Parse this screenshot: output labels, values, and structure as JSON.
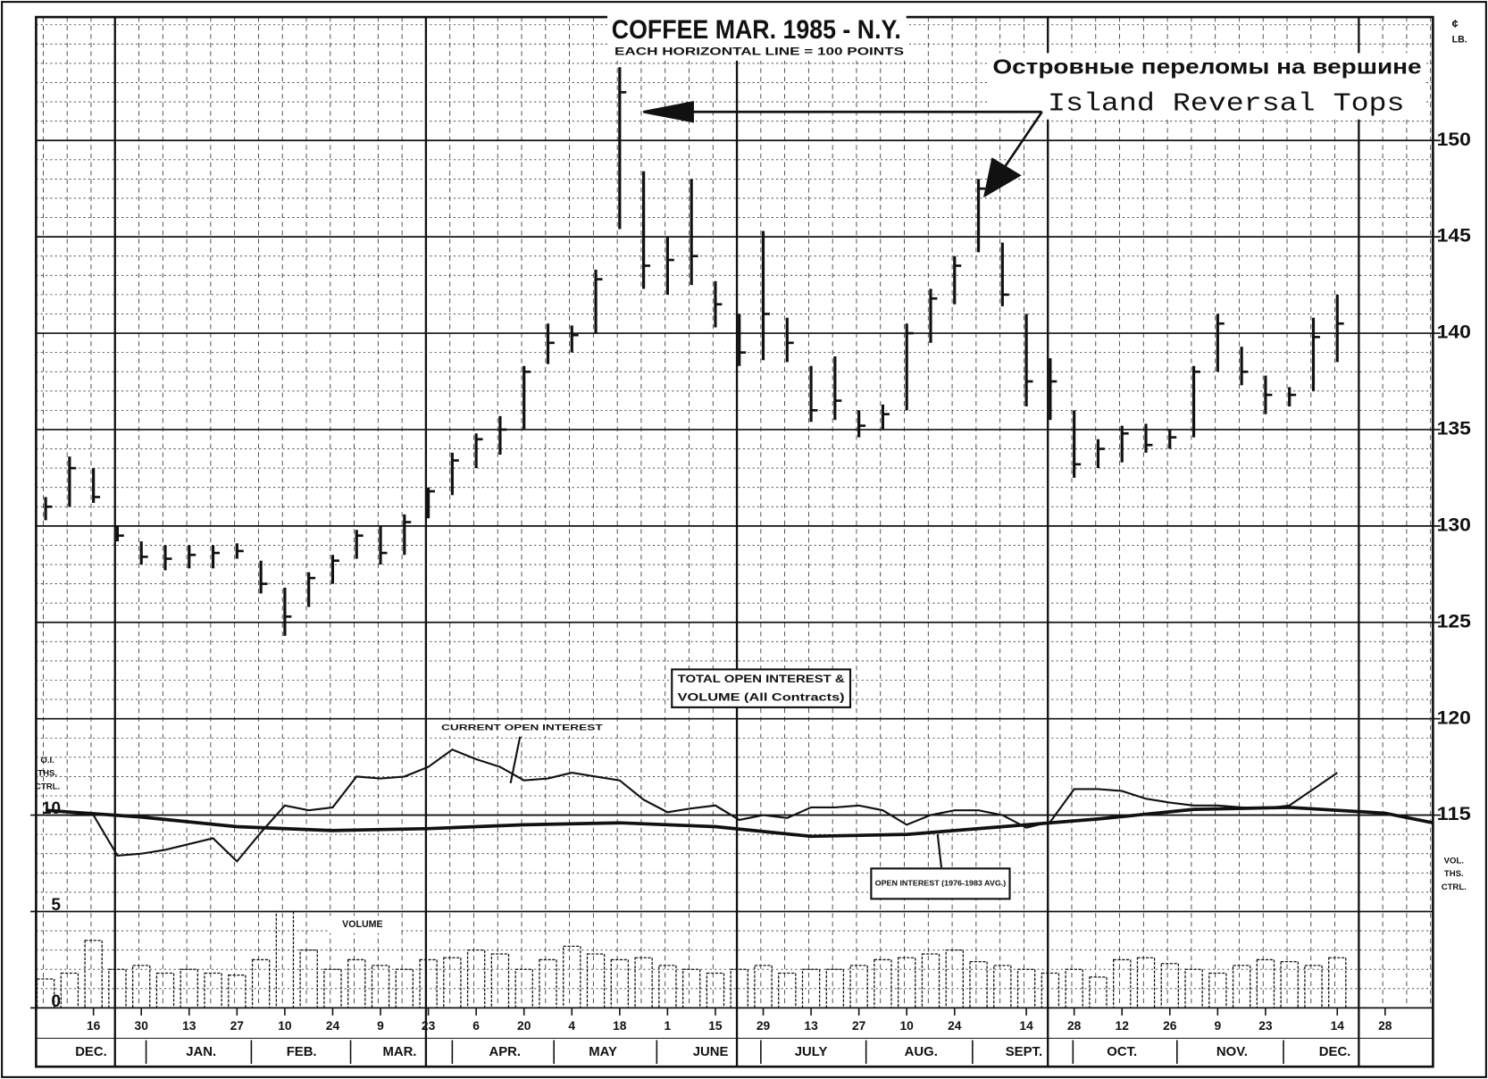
{
  "chart_data": {
    "type": "hlc",
    "title": "COFFEE MAR. 1985 - N.Y.",
    "subtitle": "EACH HORIZONTAL LINE = 100 POINTS",
    "annotations": [
      "Островные переломы на вершине",
      "Island Reversal Tops",
      "TOTAL OPEN INTEREST &",
      "VOLUME (All Contracts)"
    ],
    "y_unit": [
      "¢",
      "LB."
    ],
    "y2_label": [
      "O.I.",
      "THS.",
      "CTRL."
    ],
    "volume_axis_label": [
      "VOL.",
      "THS.",
      "CTRL."
    ],
    "color": "#111111",
    "xlim": [
      -2.4,
      56
    ],
    "ylim": [
      105,
      156.4
    ],
    "yticks": [
      115,
      120,
      125,
      130,
      135,
      140,
      145,
      150
    ],
    "y2lim": [
      0,
      51.4
    ],
    "y2ticks": [
      0,
      5,
      10
    ],
    "minor_ystep": 1,
    "minor_xstep": 1,
    "xgrid_major": [
      0.9,
      13.9,
      26.9,
      39.9,
      52.9
    ],
    "xticks": [
      {
        "value": 0,
        "label": "16"
      },
      {
        "value": 2,
        "label": "30"
      },
      {
        "value": 4,
        "label": "13"
      },
      {
        "value": 6,
        "label": "27"
      },
      {
        "value": 8,
        "label": "10"
      },
      {
        "value": 10,
        "label": "24"
      },
      {
        "value": 12,
        "label": "9"
      },
      {
        "value": 14,
        "label": "23"
      },
      {
        "value": 16,
        "label": "6"
      },
      {
        "value": 18,
        "label": "20"
      },
      {
        "value": 20,
        "label": "4"
      },
      {
        "value": 22,
        "label": "18"
      },
      {
        "value": 24,
        "label": "1"
      },
      {
        "value": 26,
        "label": "15"
      },
      {
        "value": 28,
        "label": "29"
      },
      {
        "value": 30,
        "label": "13"
      },
      {
        "value": 32,
        "label": "27"
      },
      {
        "value": 34,
        "label": "10"
      },
      {
        "value": 36,
        "label": "24"
      },
      {
        "value": 39,
        "label": "14"
      },
      {
        "value": 41,
        "label": "28"
      },
      {
        "value": 43,
        "label": "12"
      },
      {
        "value": 45,
        "label": "26"
      },
      {
        "value": 47,
        "label": "9"
      },
      {
        "value": 49,
        "label": "23"
      },
      {
        "value": 52,
        "label": "14"
      },
      {
        "value": 54,
        "label": "28"
      }
    ],
    "month_ticks": [
      {
        "value": -0.1,
        "label": "DEC."
      },
      {
        "value": 4.5,
        "label": "JAN."
      },
      {
        "value": 8.7,
        "label": "FEB."
      },
      {
        "value": 12.8,
        "label": "MAR."
      },
      {
        "value": 17.2,
        "label": "APR."
      },
      {
        "value": 21.3,
        "label": "MAY"
      },
      {
        "value": 25.8,
        "label": "JUNE"
      },
      {
        "value": 30,
        "label": "JULY"
      },
      {
        "value": 34.6,
        "label": "AUG."
      },
      {
        "value": 38.9,
        "label": "SEPT."
      },
      {
        "value": 43,
        "label": "OCT."
      },
      {
        "value": 47.6,
        "label": "NOV."
      },
      {
        "value": 51.9,
        "label": "DEC."
      }
    ],
    "x": [
      -2,
      -1,
      0,
      1,
      2,
      3,
      4,
      5,
      6,
      7,
      8,
      9,
      10,
      11,
      12,
      13,
      14,
      15,
      16,
      17,
      18,
      19,
      20,
      21,
      22,
      23,
      24,
      25,
      26,
      27,
      28,
      29,
      30,
      31,
      32,
      33,
      34,
      35,
      36,
      37,
      38,
      39,
      40,
      41,
      42,
      43,
      44,
      45,
      46,
      47,
      48,
      49,
      50,
      51,
      52
    ],
    "high": [
      131.5,
      133.6,
      133,
      130,
      129.2,
      129,
      129,
      129,
      129.1,
      128.2,
      126.8,
      127.6,
      128.5,
      129.8,
      130,
      130.6,
      132,
      133.8,
      134.8,
      135.7,
      138.3,
      140.5,
      140.4,
      143.3,
      153.8,
      148.4,
      145,
      148,
      142.7,
      141,
      145.3,
      140.8,
      138.3,
      138.8,
      136,
      136.3,
      140.5,
      142.3,
      144,
      148,
      144.7,
      141,
      138.7,
      136,
      134.5,
      135.2,
      135.3,
      135,
      138.3,
      141,
      139.3,
      137.8,
      137.2,
      140.8,
      142
    ],
    "low": [
      130.3,
      131,
      131.2,
      129.2,
      128,
      127.7,
      127.8,
      127.8,
      128.3,
      126.5,
      124.3,
      125.8,
      127,
      128.3,
      128,
      128.5,
      130.4,
      131.6,
      133,
      133.7,
      135,
      138.4,
      139,
      140,
      145.4,
      142.3,
      142,
      142.5,
      140.3,
      138.3,
      138.6,
      138.5,
      135.4,
      135.5,
      134.6,
      135,
      136,
      139.5,
      141.5,
      144.2,
      141.4,
      136.2,
      135.5,
      132.5,
      133,
      133.3,
      133.8,
      134,
      134.6,
      138,
      137.3,
      135.8,
      136.2,
      137,
      138.5
    ],
    "close": [
      131,
      133,
      131.5,
      129.5,
      128.4,
      128.3,
      128.5,
      128.6,
      128.7,
      127,
      125.3,
      127.3,
      128.2,
      129.5,
      128.6,
      130.2,
      131.8,
      133.4,
      134.5,
      135,
      138,
      139.5,
      139.9,
      142.8,
      152.5,
      143.5,
      143.8,
      144,
      141.5,
      139,
      141,
      139.5,
      136,
      136.5,
      135.2,
      135.8,
      140,
      141.8,
      143.5,
      147.5,
      142,
      137.5,
      137.5,
      133.2,
      134,
      134.8,
      134.2,
      134.6,
      138,
      140.5,
      138,
      136.8,
      136.8,
      139.8,
      140.5
    ],
    "volume": {
      "name": "VOLUME",
      "values": [
        1.5,
        1.8,
        3.5,
        2.0,
        2.2,
        1.8,
        2.0,
        1.8,
        1.7,
        2.5,
        5.0,
        3.0,
        2.0,
        2.5,
        2.2,
        2.0,
        2.5,
        2.6,
        3.0,
        2.8,
        2.0,
        2.5,
        3.2,
        2.8,
        2.5,
        2.6,
        2.2,
        2.0,
        1.8,
        2.0,
        2.2,
        1.8,
        2.0,
        2.0,
        2.2,
        2.5,
        2.6,
        2.8,
        3.0,
        2.4,
        2.2,
        2.0,
        1.8,
        2.0,
        1.6,
        2.5,
        2.6,
        2.3,
        2.0,
        1.8,
        2.2,
        2.5,
        2.4,
        2.2,
        2.6
      ]
    },
    "series": [
      {
        "name": "CURRENT OPEN INTEREST",
        "axis": "y2",
        "color": "#111111",
        "x": [
          -1,
          0,
          1,
          2,
          3,
          4,
          5,
          6,
          7,
          8,
          9,
          10,
          11,
          12,
          13,
          14,
          15,
          16,
          17,
          18,
          19,
          20,
          21,
          22,
          23,
          24,
          25,
          26,
          27,
          28,
          29,
          30,
          31,
          32,
          33,
          34,
          35,
          36,
          37,
          38,
          39,
          40,
          41,
          42,
          43,
          44,
          45,
          46,
          47,
          48,
          49,
          50,
          51,
          52
        ],
        "values": [
          10,
          10,
          7.9,
          8.0,
          8.2,
          8.5,
          8.8,
          7.6,
          9.1,
          10.5,
          10.25,
          10.4,
          12,
          11.9,
          12,
          12.5,
          13.4,
          12.9,
          12.5,
          11.8,
          11.9,
          12.2,
          12,
          11.8,
          10.8,
          10.15,
          10.35,
          10.5,
          9.75,
          10,
          9.85,
          10.4,
          10.4,
          10.5,
          10.25,
          9.5,
          10,
          10.25,
          10.25,
          10,
          9.35,
          9.65,
          11.35,
          11.35,
          11.25,
          10.85,
          10.65,
          10.5,
          10.5,
          10.4,
          10.35,
          10.5,
          11.35,
          12.2
        ]
      },
      {
        "name": "OPEN INTEREST (1976-1983 AVG.)",
        "axis": "y2",
        "color": "#111111",
        "x": [
          -2,
          2,
          6,
          10,
          14,
          18,
          22,
          26,
          30,
          34,
          38,
          42,
          46,
          50,
          54,
          56
        ],
        "values": [
          10.25,
          9.9,
          9.4,
          9.2,
          9.3,
          9.5,
          9.6,
          9.4,
          8.9,
          9.0,
          9.4,
          9.8,
          10.3,
          10.4,
          10.1,
          9.6
        ]
      }
    ]
  }
}
